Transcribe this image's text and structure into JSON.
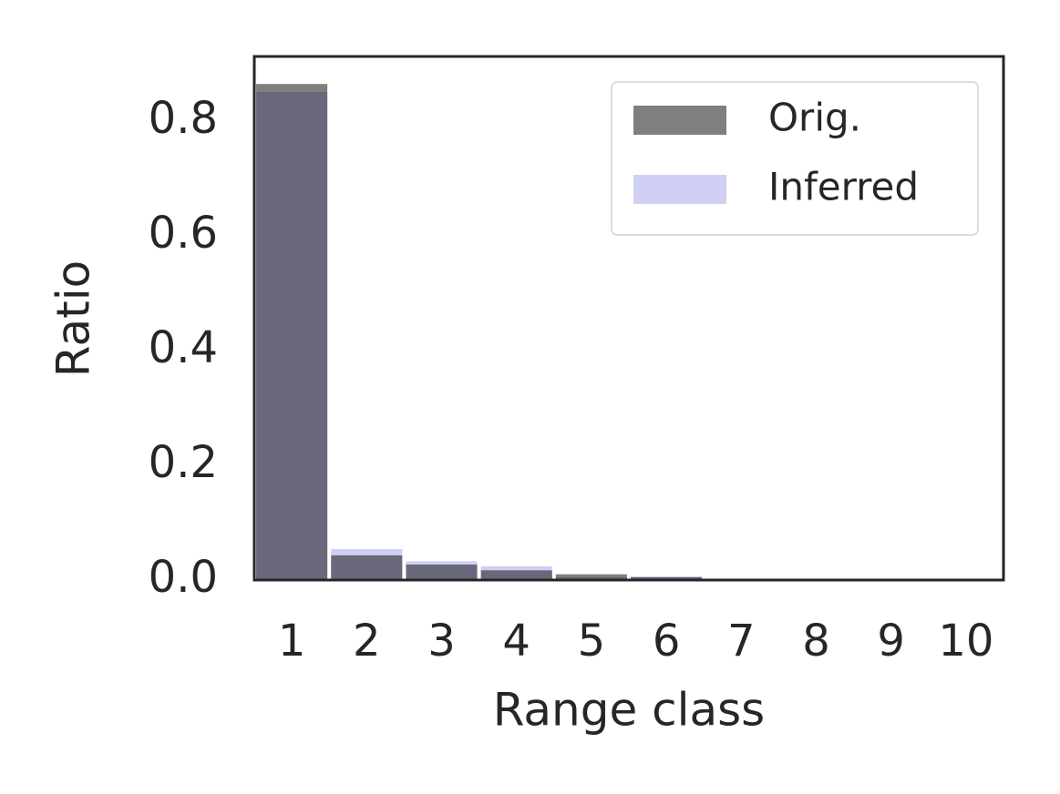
{
  "chart_data": {
    "type": "bar",
    "xlabel": "Range class",
    "ylabel": "Ratio",
    "categories": [
      "1",
      "2",
      "3",
      "4",
      "5",
      "6",
      "7",
      "8",
      "9",
      "10"
    ],
    "series": [
      {
        "name": "Inferred",
        "color": "#d0d0f5",
        "alpha": 1,
        "values": [
          0.851,
          0.054,
          0.033,
          0.024,
          0.005,
          0.006,
          0.001,
          0,
          0,
          0
        ]
      },
      {
        "name": "Orig.",
        "color": "#000000",
        "alpha": 0.5,
        "values": [
          0.865,
          0.043,
          0.027,
          0.017,
          0.01,
          0.005,
          0.001,
          0,
          0,
          0
        ]
      }
    ],
    "legend_order": [
      1,
      0
    ],
    "ylim": [
      0,
      0.913
    ],
    "yticks": [
      {
        "value": 0,
        "label": "0.0"
      },
      0.2,
      0.4,
      0.6,
      0.8
    ],
    "legend": "upper right"
  }
}
